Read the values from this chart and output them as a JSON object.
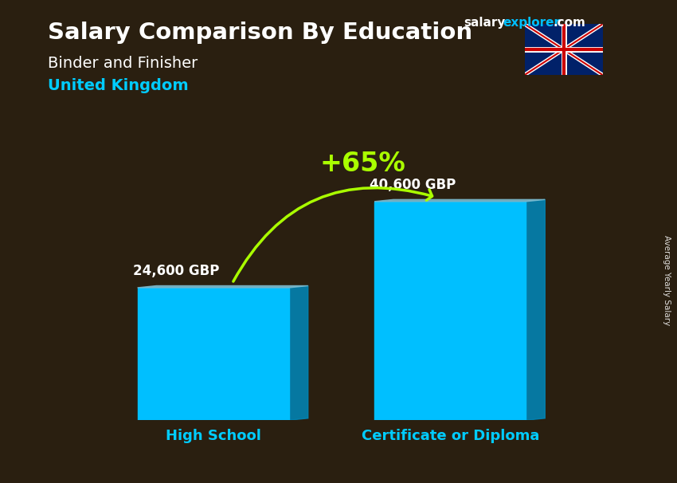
{
  "title_main": "Salary Comparison By Education",
  "subtitle1": "Binder and Finisher",
  "subtitle2": "United Kingdom",
  "categories": [
    "High School",
    "Certificate or Diploma"
  ],
  "values": [
    24600,
    40600
  ],
  "value_labels": [
    "24,600 GBP",
    "40,600 GBP"
  ],
  "pct_change": "+65%",
  "bar_color_main": "#00BFFF",
  "bar_color_dark": "#0088BB",
  "bar_color_top": "#7ab8cc",
  "bar_width": 0.32,
  "ylim": [
    0,
    52000
  ],
  "bg_color": "#2a1f10",
  "title_color": "#FFFFFF",
  "subtitle1_color": "#FFFFFF",
  "subtitle2_color": "#00CCFF",
  "label_color": "#FFFFFF",
  "xticklabel_color": "#00CCFF",
  "pct_color": "#AAFF00",
  "side_label": "Average Yearly Salary",
  "side_label_color": "#FFFFFF",
  "watermark_salary": "salary",
  "watermark_explorer": "explorer",
  "watermark_dotcom": ".com"
}
